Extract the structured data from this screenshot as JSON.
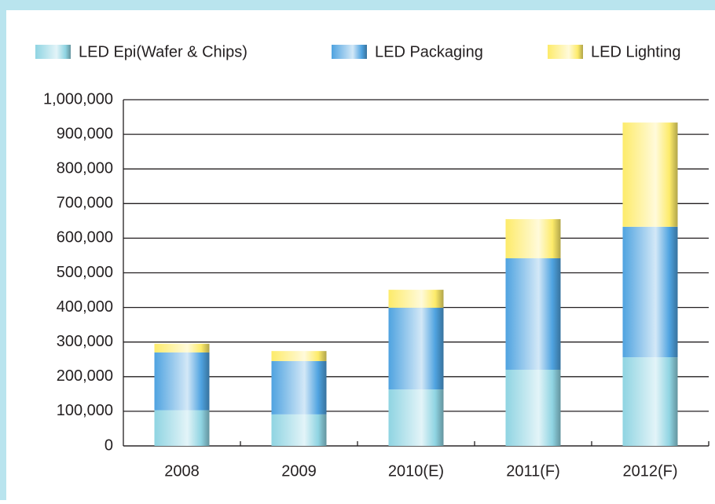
{
  "chart_data": {
    "type": "stacked_bar",
    "categories": [
      "2008",
      "2009",
      "2010(E)",
      "2011(F)",
      "2012(F)"
    ],
    "series": [
      {
        "name": "LED Epi(Wafer & Chips)",
        "color": "#8fd4e2",
        "values": [
          103000,
          91000,
          163000,
          220000,
          256000
        ]
      },
      {
        "name": "LED Packaging",
        "color": "#4fa3e0",
        "values": [
          167000,
          154000,
          236000,
          322000,
          377000
        ]
      },
      {
        "name": "LED Lighting",
        "color": "#fdeb6a",
        "values": [
          25000,
          29000,
          52000,
          113000,
          301000
        ]
      }
    ],
    "ylim": [
      0,
      1000000
    ],
    "yticks": [
      0,
      {
        "value": 100000,
        "label": "100,000"
      },
      {
        "value": 200000,
        "label": "200,000"
      },
      {
        "value": 300000,
        "label": "300,000"
      },
      {
        "value": 400000,
        "label": "400,000"
      },
      {
        "value": 500000,
        "label": "500,000"
      },
      {
        "value": 600000,
        "label": "600,000"
      },
      {
        "value": 700000,
        "label": "700,000"
      },
      {
        "value": 800000,
        "label": "800,000"
      },
      {
        "value": 900000,
        "label": "900,000"
      },
      {
        "value": 1000000,
        "label": "1,000,000"
      }
    ],
    "grid": true,
    "legend": "top"
  }
}
